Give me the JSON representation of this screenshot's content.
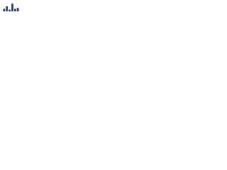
{
  "chart_data": {
    "type": "bar",
    "values": [
      3,
      6,
      2,
      9,
      3,
      4
    ],
    "color": "#1f3a7a",
    "ylim": [
      0,
      10
    ]
  }
}
